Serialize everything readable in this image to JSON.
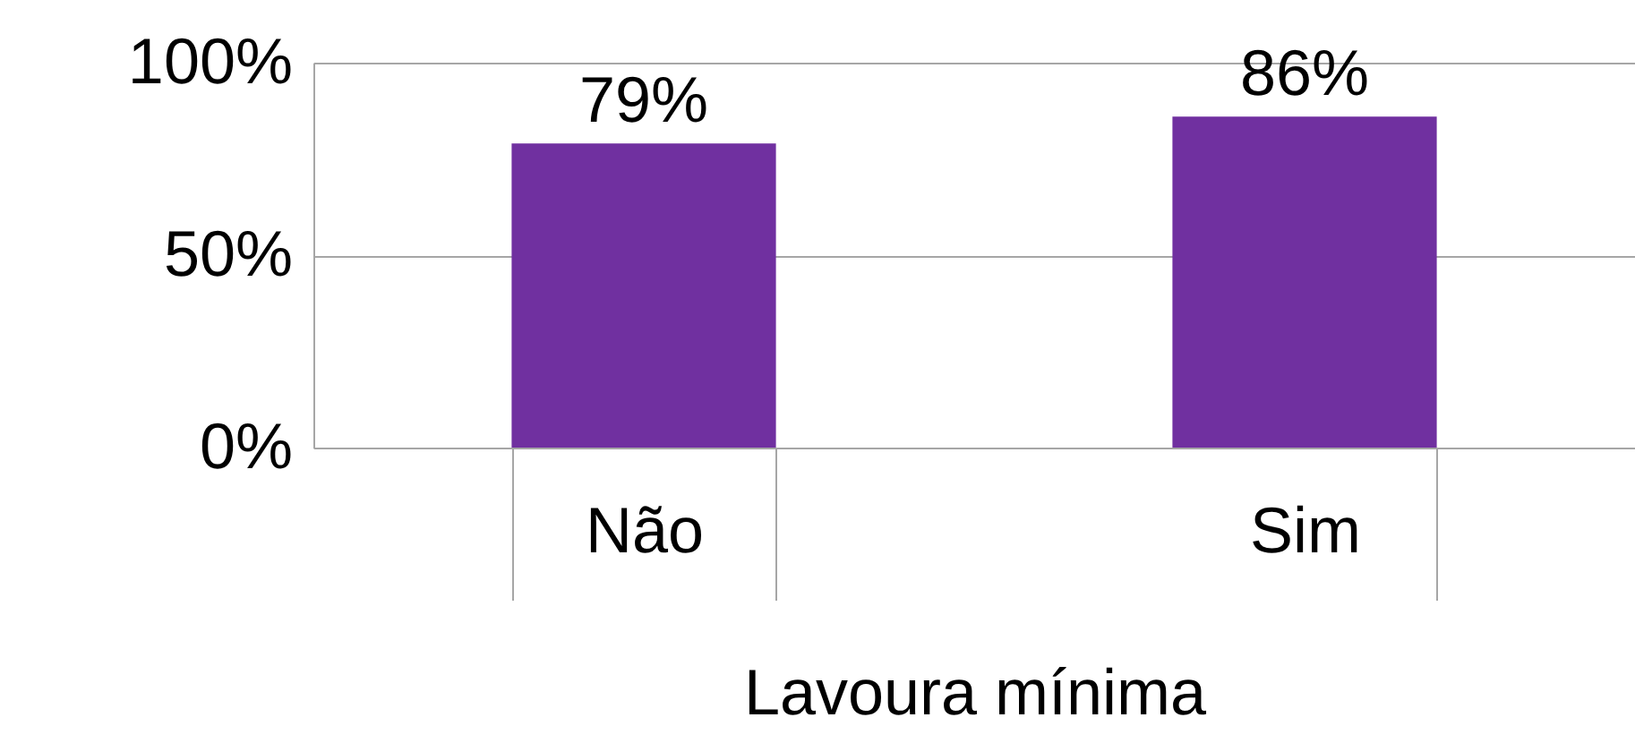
{
  "chart_data": {
    "type": "bar",
    "xlabel": "Lavoura mínima",
    "categories": [
      "Não",
      "Sim"
    ],
    "values": [
      79,
      86
    ],
    "value_labels": [
      "79%",
      "86%"
    ],
    "color": "#7030a0",
    "ylim": [
      0,
      100
    ],
    "yticks": [
      {
        "value": 0,
        "label": "0%"
      },
      {
        "value": 50,
        "label": "50%"
      },
      {
        "value": 100,
        "label": "100%"
      }
    ],
    "grid": "y"
  }
}
